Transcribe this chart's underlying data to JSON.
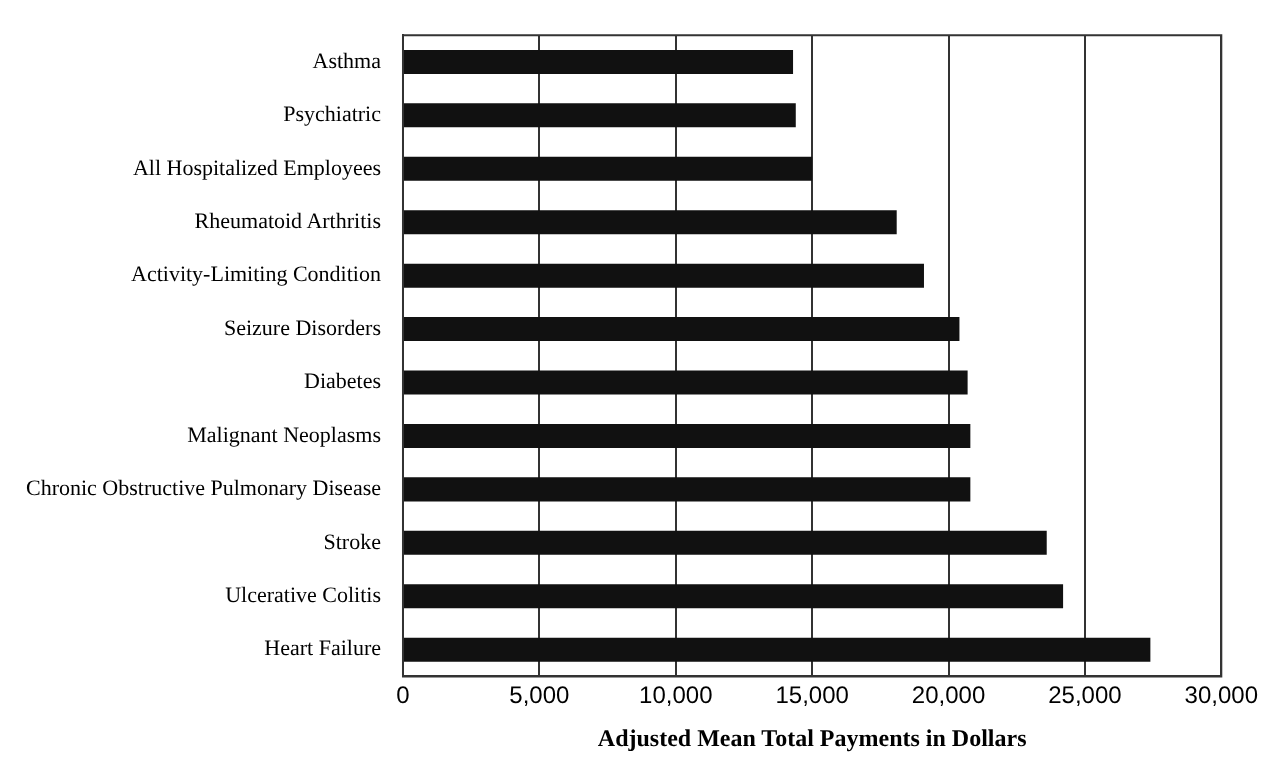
{
  "chart_data": {
    "type": "bar",
    "orientation": "horizontal",
    "xlabel": "Adjusted Mean Total Payments in Dollars",
    "categories": [
      "Asthma",
      "Psychiatric",
      "All Hospitalized Employees",
      "Rheumatoid Arthritis",
      "Activity-Limiting Condition",
      "Seizure Disorders",
      "Diabetes",
      "Malignant Neoplasms",
      "Chronic Obstructive Pulmonary Disease",
      "Stroke",
      "Ulcerative Colitis",
      "Heart Failure"
    ],
    "values": [
      14300,
      14400,
      15000,
      18100,
      19100,
      20400,
      20700,
      20800,
      20800,
      23600,
      24200,
      27400
    ],
    "color": "#111111",
    "xlim": [
      0,
      30000
    ],
    "xticks": [
      {
        "value": 0,
        "label": "0"
      },
      {
        "value": 5000,
        "label": "5,000"
      },
      {
        "value": 10000,
        "label": "10,000"
      },
      {
        "value": 15000,
        "label": "15,000"
      },
      {
        "value": 20000,
        "label": "20,000"
      },
      {
        "value": 25000,
        "label": "25,000"
      },
      {
        "value": 30000,
        "label": "30,000"
      }
    ],
    "grid": "x",
    "legend": false
  }
}
